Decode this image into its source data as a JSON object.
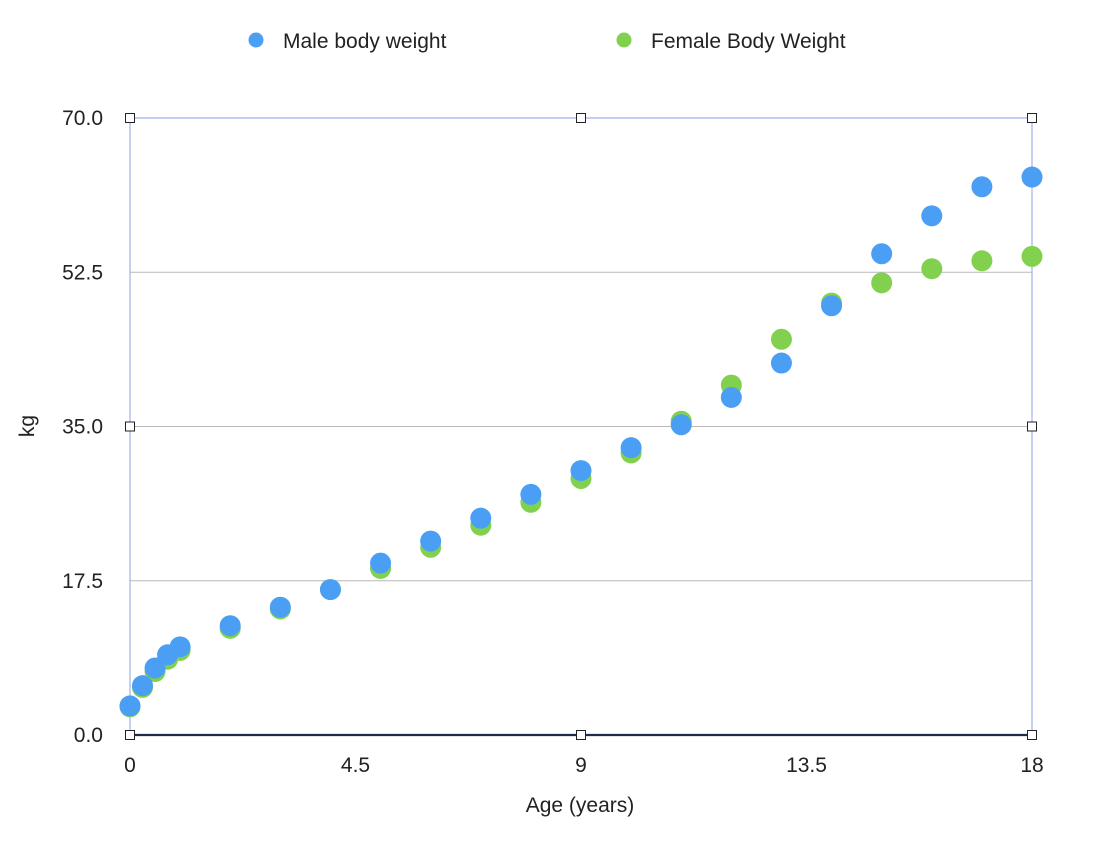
{
  "chart_data": {
    "type": "scatter",
    "title": "",
    "xlabel": "Age (years)",
    "ylabel": "kg",
    "xlim": [
      0,
      18
    ],
    "ylim": [
      0,
      70
    ],
    "x_ticks": [
      "0",
      "4.5",
      "9",
      "13.5",
      "18"
    ],
    "y_ticks": [
      "0.0",
      "17.5",
      "35.0",
      "52.5",
      "70.0"
    ],
    "grid": true,
    "legend_position": "top",
    "series": [
      {
        "name": "Male body weight",
        "color": "#4a9ff5",
        "points": [
          [
            0,
            3.3
          ],
          [
            0.25,
            5.6
          ],
          [
            0.5,
            7.6
          ],
          [
            0.75,
            9.1
          ],
          [
            1,
            10.0
          ],
          [
            2,
            12.4
          ],
          [
            3,
            14.5
          ],
          [
            4,
            16.5
          ],
          [
            5,
            19.5
          ],
          [
            6,
            22.0
          ],
          [
            7,
            24.6
          ],
          [
            8,
            27.3
          ],
          [
            9,
            30.0
          ],
          [
            10,
            32.6
          ],
          [
            11,
            35.2
          ],
          [
            12,
            38.3
          ],
          [
            13,
            42.2
          ],
          [
            14,
            48.7
          ],
          [
            15,
            54.6
          ],
          [
            16,
            58.9
          ],
          [
            17,
            62.2
          ],
          [
            18,
            63.3
          ]
        ]
      },
      {
        "name": "Female Body Weight",
        "color": "#82d14e",
        "points": [
          [
            0,
            3.2
          ],
          [
            0.25,
            5.4
          ],
          [
            0.5,
            7.2
          ],
          [
            0.75,
            8.6
          ],
          [
            1,
            9.6
          ],
          [
            2,
            12.1
          ],
          [
            3,
            14.3
          ],
          [
            4,
            16.5
          ],
          [
            5,
            18.9
          ],
          [
            6,
            21.3
          ],
          [
            7,
            23.8
          ],
          [
            8,
            26.4
          ],
          [
            9,
            29.1
          ],
          [
            10,
            32.0
          ],
          [
            11,
            35.6
          ],
          [
            12,
            39.7
          ],
          [
            13,
            44.9
          ],
          [
            14,
            49.0
          ],
          [
            15,
            51.3
          ],
          [
            16,
            52.9
          ],
          [
            17,
            53.8
          ],
          [
            18,
            54.3
          ]
        ]
      }
    ]
  }
}
